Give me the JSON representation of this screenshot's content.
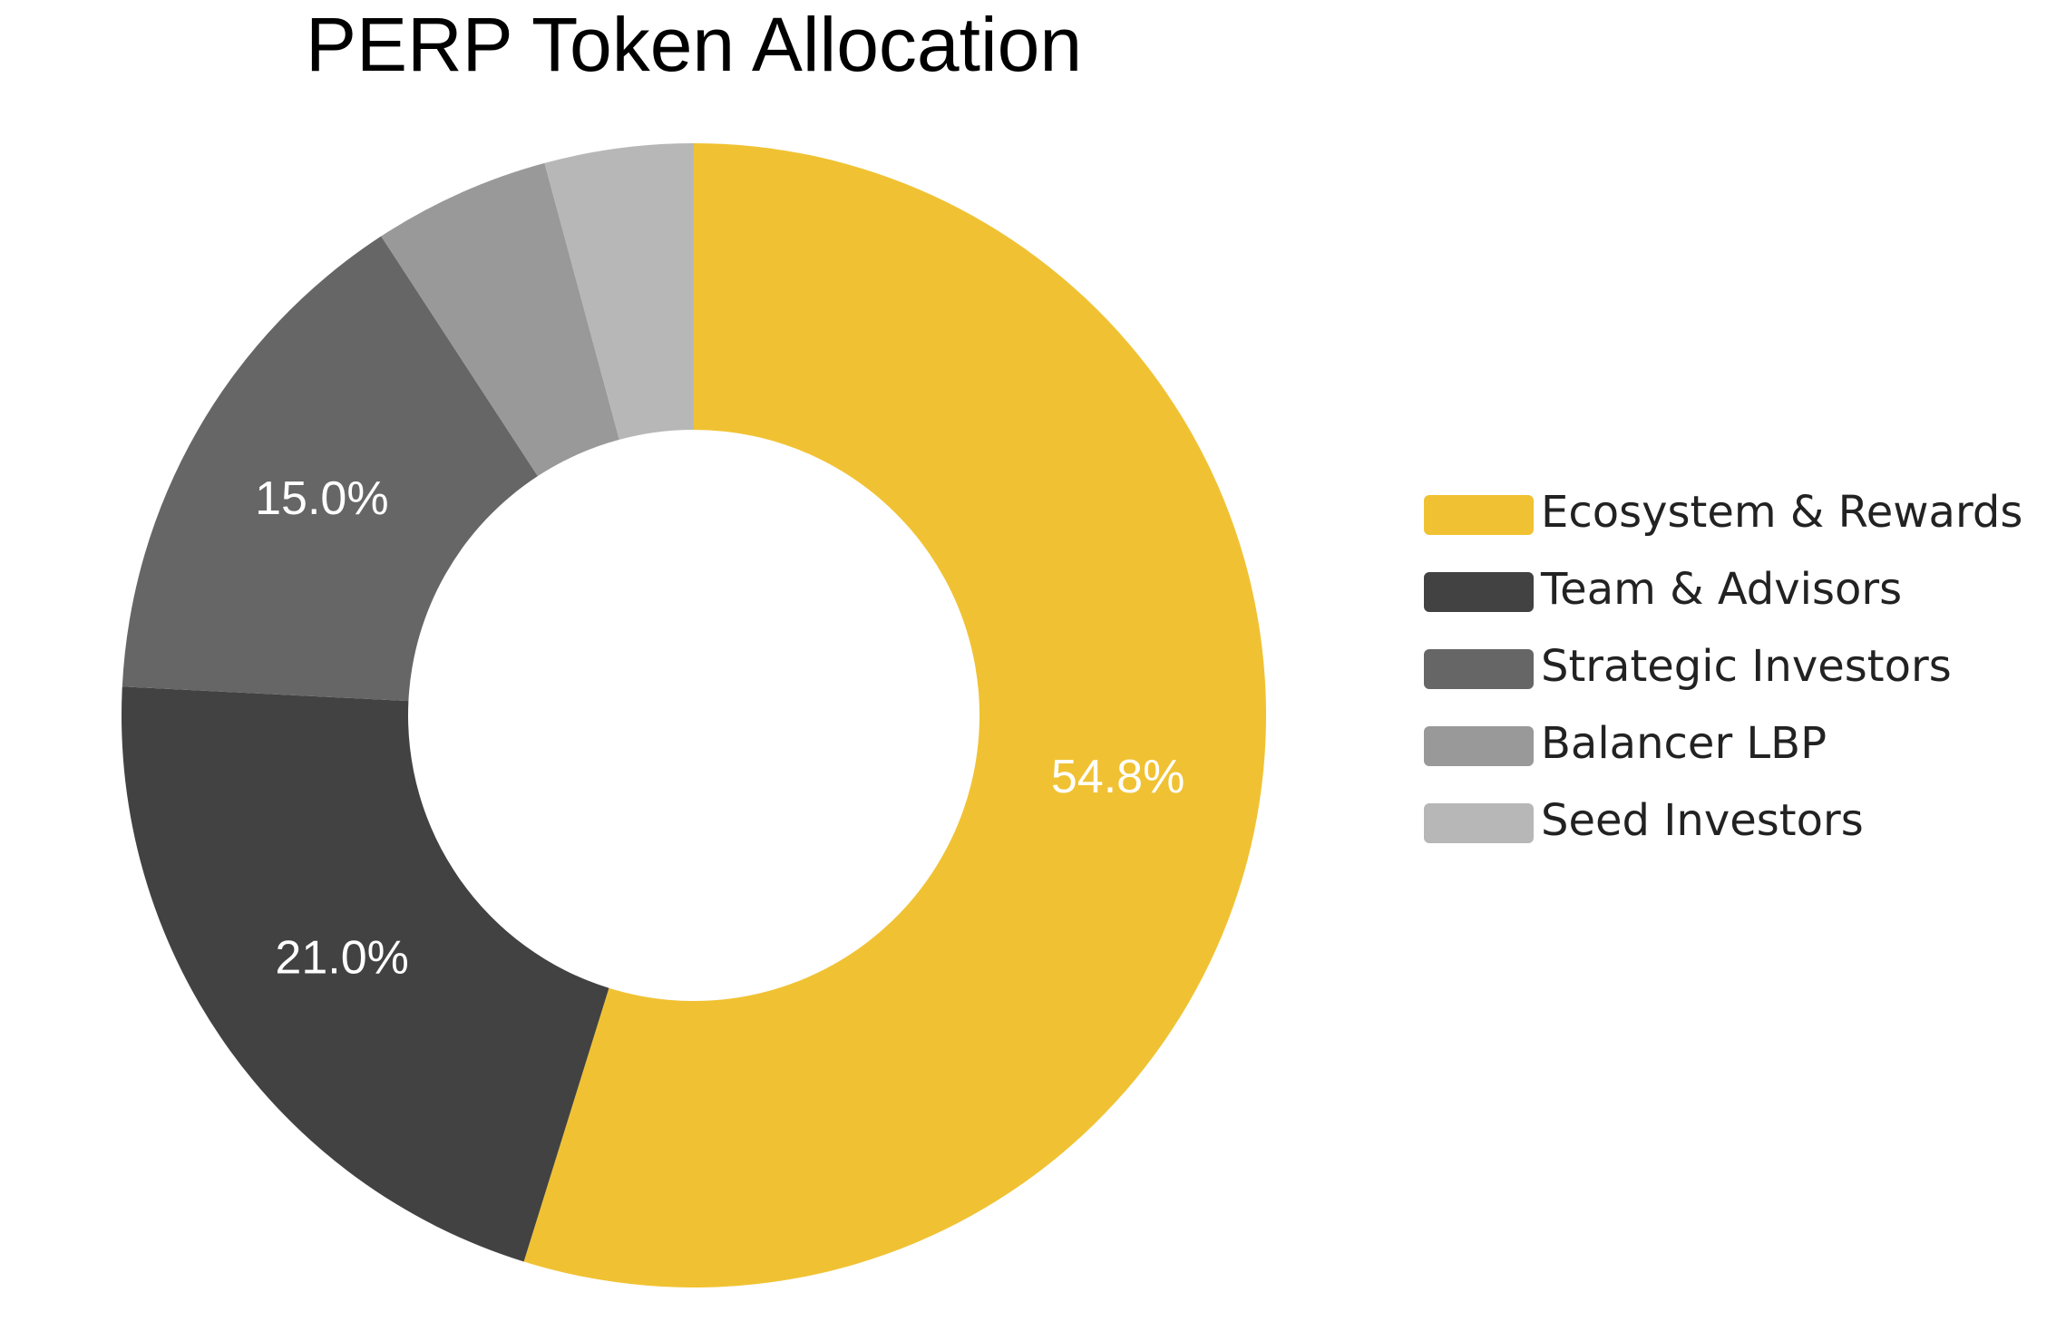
{
  "chart_data": {
    "type": "donut",
    "title": "PERP Token Allocation",
    "categories": [
      "Ecosystem & Rewards",
      "Team & Advisors",
      "Strategic Investors",
      "Balancer LBP",
      "Seed Investors"
    ],
    "values": [
      54.8,
      21.0,
      15.0,
      5.0,
      4.2
    ],
    "value_labels": [
      "54.8%",
      "21.0%",
      "15.0%",
      null,
      null
    ],
    "colors": [
      "#f0c233",
      "#424242",
      "#666666",
      "#999999",
      "#b7b7b7"
    ],
    "legend": "right"
  }
}
